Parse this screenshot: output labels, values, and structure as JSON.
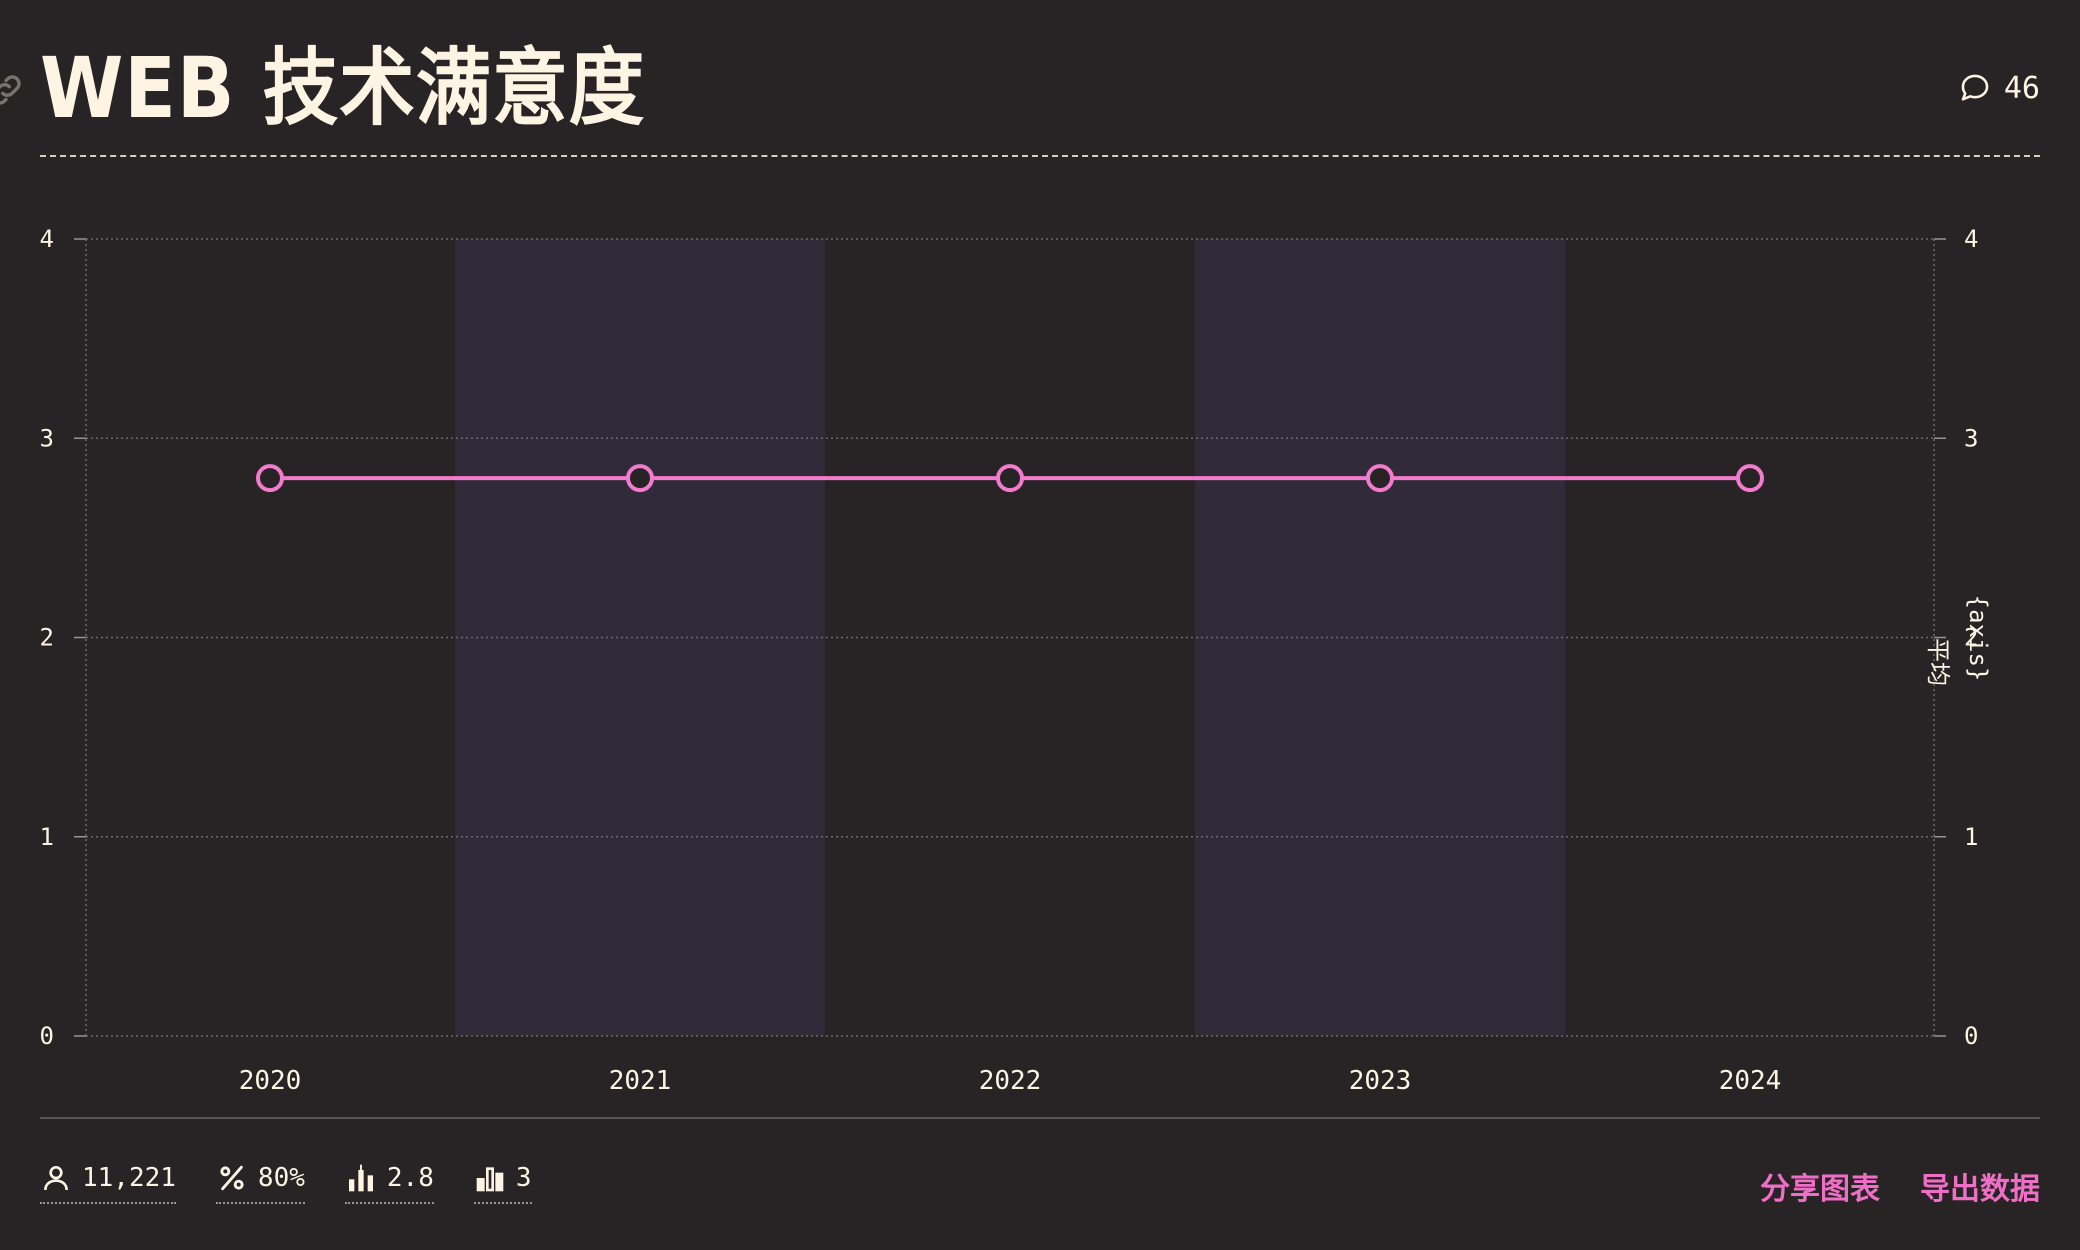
{
  "header": {
    "title": "WEB 技术满意度",
    "comment_count": "46"
  },
  "chart_data": {
    "type": "line",
    "categories": [
      "2020",
      "2021",
      "2022",
      "2023",
      "2024"
    ],
    "series": [
      {
        "values": [
          2.8,
          2.8,
          2.8,
          2.8,
          2.8
        ],
        "color": "#f27bcd"
      }
    ],
    "ylim": [
      0,
      4
    ],
    "y_ticks": [
      "0",
      "1",
      "2",
      "3",
      "4"
    ],
    "right_axis_label_1": "平均",
    "right_axis_label_2": "{axis}",
    "grid": true,
    "band_color": "#312b39"
  },
  "footer": {
    "stats": {
      "respondents": "11,221",
      "percentage": "80%",
      "average": "2.8",
      "count": "3"
    },
    "actions": {
      "share": "分享图表",
      "export": "导出数据"
    }
  },
  "icons": {
    "link": "link-icon",
    "comment": "comment-icon",
    "user": "user-icon",
    "percent": "percent-icon",
    "average": "bar-average-icon",
    "count": "bar-count-icon"
  }
}
